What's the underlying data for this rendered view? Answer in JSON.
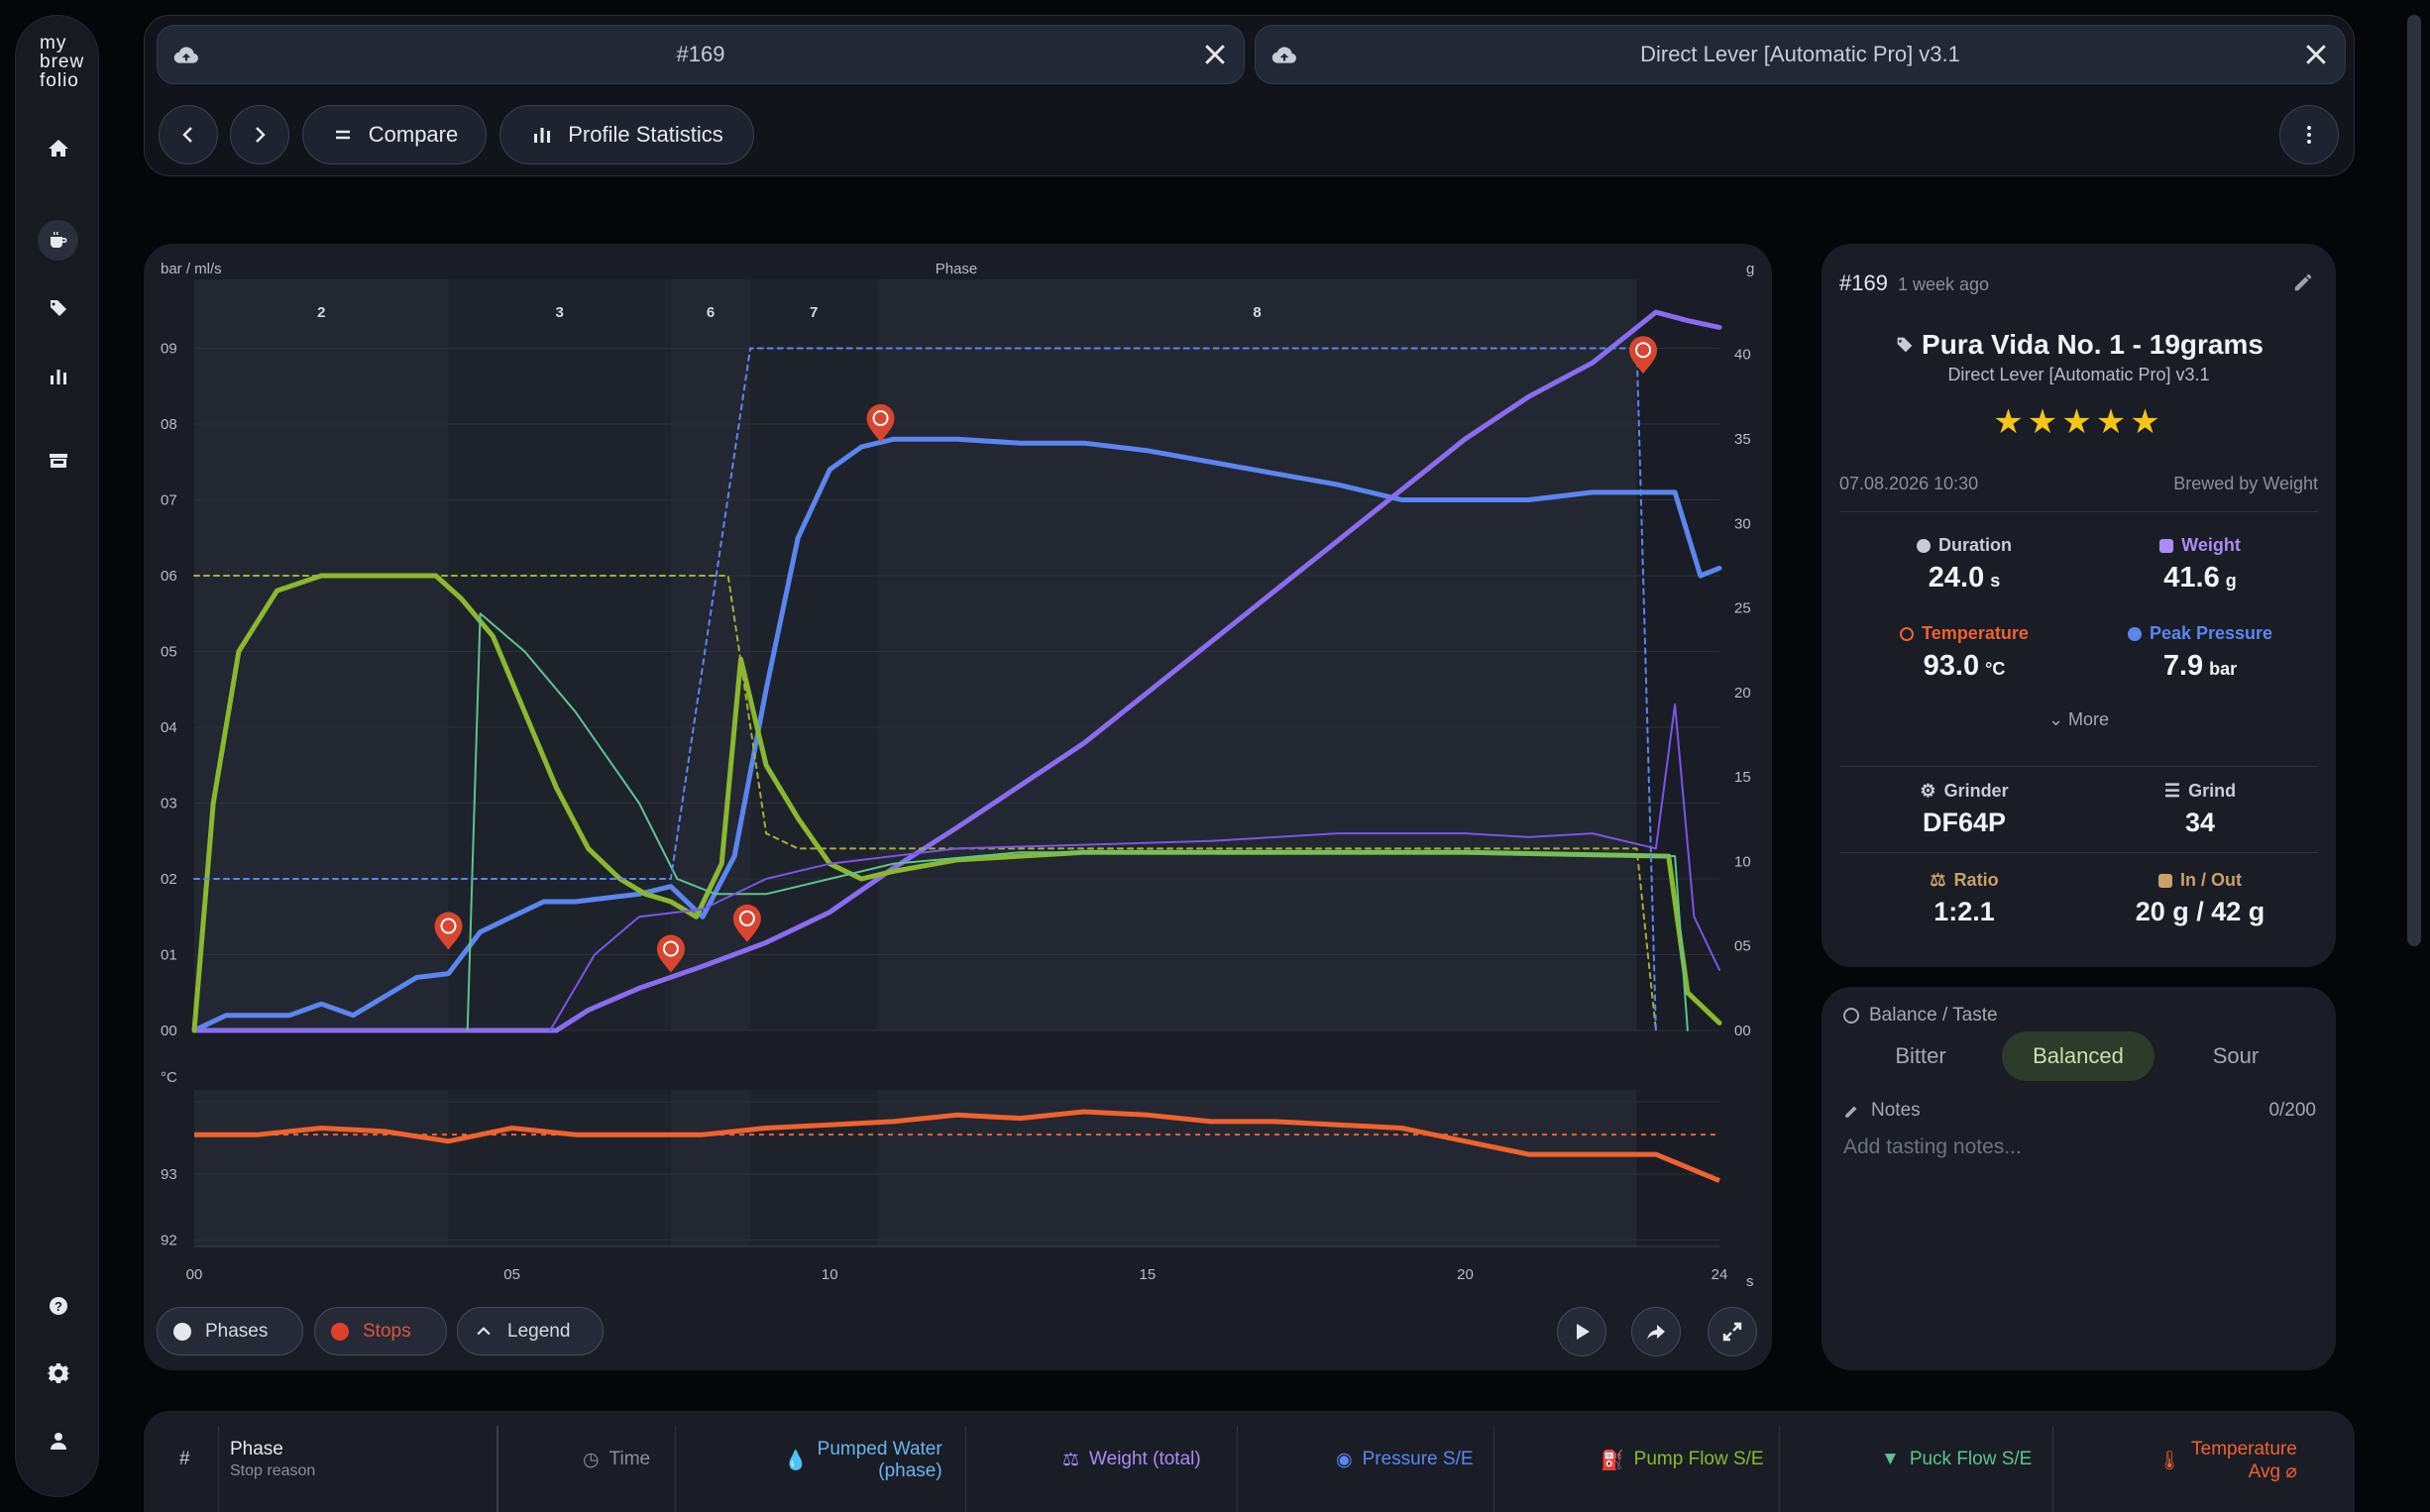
{
  "app": {
    "logo_lines": [
      "my",
      "brew",
      "folio"
    ]
  },
  "sidebar": {
    "items": [
      {
        "name": "home-icon"
      },
      {
        "name": "coffee-cup-icon",
        "active": true
      },
      {
        "name": "tag-icon"
      },
      {
        "name": "bar-chart-icon"
      },
      {
        "name": "store-icon"
      },
      {
        "name": "help-icon"
      },
      {
        "name": "gear-icon"
      },
      {
        "name": "user-icon"
      }
    ]
  },
  "header": {
    "tabs": [
      {
        "label": "#169"
      },
      {
        "label": "Direct Lever [Automatic Pro] v3.1"
      }
    ],
    "toolbar": {
      "compare_label": "Compare",
      "stats_label": "Profile Statistics"
    }
  },
  "chart": {
    "left_axis_label": "bar / ml/s",
    "phase_label": "Phase",
    "right_axis_label": "g",
    "temp_axis_label": "°C",
    "x_unit": "s",
    "controls": {
      "phases": "Phases",
      "stops": "Stops",
      "legend": "Legend"
    }
  },
  "chart_data": {
    "type": "line",
    "x": {
      "min": 0,
      "max": 24,
      "ticks": [
        "00",
        "05",
        "10",
        "15",
        "20",
        "24"
      ]
    },
    "y_left": {
      "min": 0,
      "max": 9.7,
      "ticks": [
        "00",
        "01",
        "02",
        "03",
        "04",
        "05",
        "06",
        "07",
        "08",
        "09"
      ]
    },
    "y_right": {
      "min": 0,
      "max": 43.5,
      "ticks": [
        "00",
        "05",
        "10",
        "15",
        "20",
        "25",
        "30",
        "35",
        "40"
      ]
    },
    "y_temp": {
      "ticks": [
        "92",
        "93"
      ]
    },
    "phases": [
      {
        "label": "2",
        "start": 0,
        "end": 4.0
      },
      {
        "label": "3",
        "start": 4.0,
        "end": 7.5
      },
      {
        "label": "6",
        "start": 7.5,
        "end": 8.75
      },
      {
        "label": "7",
        "start": 8.75,
        "end": 10.75
      },
      {
        "label": "8",
        "start": 10.75,
        "end": 22.7
      }
    ],
    "series": [
      {
        "color": "#5b86f0",
        "axis": "left",
        "width": 5,
        "points": [
          [
            0,
            0
          ],
          [
            0.5,
            0.2
          ],
          [
            1.5,
            0.2
          ],
          [
            2,
            0.35
          ],
          [
            2.5,
            0.2
          ],
          [
            3,
            0.45
          ],
          [
            3.5,
            0.7
          ],
          [
            4,
            0.75
          ],
          [
            4.5,
            1.3
          ],
          [
            5,
            1.5
          ],
          [
            5.5,
            1.7
          ],
          [
            6,
            1.7
          ],
          [
            6.5,
            1.75
          ],
          [
            7,
            1.8
          ],
          [
            7.5,
            1.9
          ],
          [
            8,
            1.5
          ],
          [
            8.5,
            2.3
          ],
          [
            9,
            4.5
          ],
          [
            9.5,
            6.5
          ],
          [
            10,
            7.4
          ],
          [
            10.5,
            7.7
          ],
          [
            11,
            7.8
          ],
          [
            12,
            7.8
          ],
          [
            13,
            7.75
          ],
          [
            14,
            7.75
          ],
          [
            15,
            7.65
          ],
          [
            16,
            7.5
          ],
          [
            17,
            7.35
          ],
          [
            18,
            7.2
          ],
          [
            19,
            7.0
          ],
          [
            20,
            7.0
          ],
          [
            21,
            7.0
          ],
          [
            22,
            7.1
          ],
          [
            23.3,
            7.1
          ],
          [
            23.7,
            6.0
          ],
          [
            24,
            6.1
          ]
        ]
      },
      {
        "color": "#8a6cf0",
        "axis": "right",
        "width": 5,
        "points": [
          [
            0,
            0
          ],
          [
            5.7,
            0
          ],
          [
            6.2,
            1.2
          ],
          [
            7,
            2.5
          ],
          [
            8,
            3.8
          ],
          [
            9,
            5.2
          ],
          [
            10,
            7.0
          ],
          [
            11,
            9.6
          ],
          [
            12,
            12.0
          ],
          [
            13,
            14.5
          ],
          [
            14,
            17.0
          ],
          [
            15,
            20.0
          ],
          [
            16,
            23.0
          ],
          [
            17,
            26.0
          ],
          [
            18,
            29.0
          ],
          [
            19,
            32.0
          ],
          [
            20,
            35.0
          ],
          [
            21,
            37.5
          ],
          [
            22,
            39.5
          ],
          [
            23,
            42.5
          ],
          [
            23.5,
            42.0
          ],
          [
            24,
            41.6
          ]
        ]
      },
      {
        "color": "#8ab82e",
        "axis": "left",
        "width": 5,
        "points": [
          [
            0,
            0
          ],
          [
            0.3,
            3.0
          ],
          [
            0.7,
            5.0
          ],
          [
            1.3,
            5.8
          ],
          [
            2,
            6.0
          ],
          [
            3.8,
            6.0
          ],
          [
            4.2,
            5.7
          ],
          [
            4.7,
            5.2
          ],
          [
            5.2,
            4.2
          ],
          [
            5.7,
            3.2
          ],
          [
            6.2,
            2.4
          ],
          [
            6.7,
            2.0
          ],
          [
            7.1,
            1.8
          ],
          [
            7.5,
            1.7
          ],
          [
            7.9,
            1.5
          ],
          [
            8.3,
            2.2
          ],
          [
            8.6,
            4.9
          ],
          [
            9,
            3.5
          ],
          [
            9.5,
            2.8
          ],
          [
            10,
            2.2
          ],
          [
            10.5,
            2.0
          ],
          [
            11,
            2.1
          ],
          [
            12,
            2.25
          ],
          [
            14,
            2.35
          ],
          [
            20,
            2.35
          ],
          [
            23.2,
            2.3
          ],
          [
            23.5,
            0.5
          ],
          [
            24,
            0.1
          ]
        ]
      },
      {
        "color": "#5ec48c",
        "axis": "left",
        "width": 2,
        "points": [
          [
            4.3,
            0
          ],
          [
            4.5,
            5.5
          ],
          [
            5.2,
            5.0
          ],
          [
            6,
            4.2
          ],
          [
            7,
            3.0
          ],
          [
            7.6,
            2.0
          ],
          [
            8.2,
            1.8
          ],
          [
            9,
            1.8
          ],
          [
            10,
            2.0
          ],
          [
            11,
            2.2
          ],
          [
            13,
            2.35
          ],
          [
            20,
            2.35
          ],
          [
            23.3,
            2.3
          ],
          [
            23.5,
            0
          ]
        ]
      },
      {
        "color": "#a3b030",
        "axis": "left",
        "dashed": true,
        "width": 2,
        "points": [
          [
            0,
            6.0
          ],
          [
            8.4,
            6.0
          ],
          [
            9,
            2.6
          ],
          [
            9.5,
            2.4
          ],
          [
            22.7,
            2.4
          ],
          [
            23,
            0
          ]
        ]
      },
      {
        "color": "#5b86f0",
        "axis": "left",
        "dashed": true,
        "width": 2,
        "points": [
          [
            0,
            2.0
          ],
          [
            7.5,
            2.0
          ],
          [
            8.75,
            9.0
          ],
          [
            22.7,
            9.0
          ],
          [
            23,
            0
          ]
        ]
      },
      {
        "color": "#7b55e8",
        "axis": "left",
        "width": 2,
        "points": [
          [
            5.6,
            0
          ],
          [
            6.3,
            1.0
          ],
          [
            7.0,
            1.5
          ],
          [
            8.0,
            1.6
          ],
          [
            9,
            2.0
          ],
          [
            10,
            2.2
          ],
          [
            12,
            2.4
          ],
          [
            14,
            2.45
          ],
          [
            16,
            2.5
          ],
          [
            18,
            2.6
          ],
          [
            20,
            2.6
          ],
          [
            21,
            2.55
          ],
          [
            22,
            2.6
          ],
          [
            23,
            2.4
          ],
          [
            23.3,
            4.3
          ],
          [
            23.6,
            1.5
          ],
          [
            24,
            0.8
          ]
        ]
      }
    ],
    "temperature": {
      "color": "#f0622e",
      "points": [
        [
          0,
          93.6
        ],
        [
          1,
          93.6
        ],
        [
          2,
          93.7
        ],
        [
          3,
          93.65
        ],
        [
          4,
          93.5
        ],
        [
          5,
          93.7
        ],
        [
          6,
          93.6
        ],
        [
          7,
          93.6
        ],
        [
          8,
          93.6
        ],
        [
          9,
          93.7
        ],
        [
          10,
          93.75
        ],
        [
          11,
          93.8
        ],
        [
          12,
          93.9
        ],
        [
          13,
          93.85
        ],
        [
          14,
          93.95
        ],
        [
          15,
          93.9
        ],
        [
          16,
          93.8
        ],
        [
          17,
          93.8
        ],
        [
          18,
          93.75
        ],
        [
          19,
          93.7
        ],
        [
          20,
          93.5
        ],
        [
          21,
          93.3
        ],
        [
          22,
          93.3
        ],
        [
          23,
          93.3
        ],
        [
          24,
          92.9
        ]
      ],
      "target": 93.6
    },
    "stops": [
      {
        "x": 4.0,
        "y": 1.3,
        "kind": "timer"
      },
      {
        "x": 7.5,
        "y": 1.0,
        "kind": "weight"
      },
      {
        "x": 8.7,
        "y": 1.4,
        "kind": "weight"
      },
      {
        "x": 10.8,
        "y": 8.0,
        "kind": "timer"
      },
      {
        "x": 22.8,
        "y": 8.9,
        "kind": "weight"
      }
    ]
  },
  "shot": {
    "id": "#169",
    "ago": "1 week ago",
    "bean": "Pura Vida No. 1 - 19grams",
    "profile": "Direct Lever [Automatic Pro] v3.1",
    "stars": "★★★★★",
    "date": "07.08.2026 10:30",
    "brewed_by": "Brewed by Weight",
    "duration": {
      "label": "Duration",
      "value": "24.0",
      "unit": "s"
    },
    "weight": {
      "label": "Weight",
      "value": "41.6",
      "unit": "g"
    },
    "temperature": {
      "label": "Temperature",
      "value": "93.0",
      "unit": "°C"
    },
    "peak_pressure": {
      "label": "Peak Pressure",
      "value": "7.9",
      "unit": "bar"
    },
    "more": "More",
    "grinder": {
      "label": "Grinder",
      "value": "DF64P"
    },
    "grind": {
      "label": "Grind",
      "value": "34"
    },
    "ratio": {
      "label": "Ratio",
      "value": "1:2.1"
    },
    "in_out": {
      "label": "In / Out",
      "value": "20 g / 42 g"
    }
  },
  "taste": {
    "title": "Balance / Taste",
    "options": [
      "Bitter",
      "Balanced",
      "Sour"
    ],
    "selected": "Balanced",
    "notes_label": "Notes",
    "notes_count": "0/200",
    "notes_placeholder": "Add tasting notes..."
  },
  "table": {
    "headers": {
      "num": "#",
      "phase": "Phase",
      "stop_reason": "Stop reason",
      "time": "Time",
      "pumped_water_1": "Pumped Water",
      "pumped_water_2": "(phase)",
      "weight": "Weight (total)",
      "pressure": "Pressure S/E",
      "pump_flow": "Pump Flow S/E",
      "puck_flow": "Puck Flow S/E",
      "temperature_1": "Temperature",
      "temperature_2": "Avg ⌀"
    }
  },
  "colors": {
    "pressure": "#5b86f0",
    "weight": "#8a6cf0",
    "flow": "#8ab82e",
    "temperature": "#f0622e",
    "stop": "#d9452e"
  }
}
